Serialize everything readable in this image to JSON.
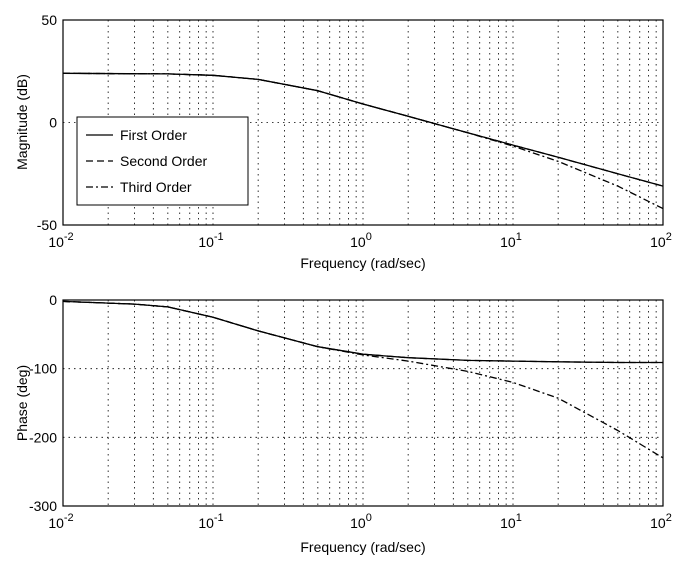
{
  "chart_data": [
    {
      "type": "line",
      "id": "magnitude",
      "xscale": "log",
      "xlim": [
        0.01,
        100
      ],
      "ylim": [
        -50,
        50
      ],
      "xlabel": "Frequency (rad/sec)",
      "ylabel": "Magnitude (dB)",
      "grid": true,
      "legend_position": "left",
      "x_ticks": [
        {
          "base": "10",
          "exp": "-2"
        },
        {
          "base": "10",
          "exp": "-1"
        },
        {
          "base": "10",
          "exp": "0"
        },
        {
          "base": "10",
          "exp": "1"
        },
        {
          "base": "10",
          "exp": "2"
        }
      ],
      "y_ticks": [
        "50",
        "0",
        "-50"
      ],
      "y_tick_values": [
        50,
        0,
        -50
      ],
      "series": [
        {
          "name": "First Order",
          "style": "solid",
          "x": [
            0.01,
            0.05,
            0.1,
            0.2,
            0.5,
            1,
            2,
            5,
            10,
            20,
            50,
            100
          ],
          "y": [
            24,
            23.7,
            23,
            21,
            15.5,
            9,
            3,
            -5,
            -11,
            -17,
            -25,
            -31
          ]
        },
        {
          "name": "Second Order",
          "style": "dashed",
          "x": [
            0.01,
            0.05,
            0.1,
            0.2,
            0.5,
            1,
            2,
            5,
            10,
            20,
            50,
            100
          ],
          "y": [
            24,
            23.7,
            23,
            21,
            15.5,
            9,
            3,
            -5,
            -11,
            -17,
            -25,
            -31
          ]
        },
        {
          "name": "Third Order",
          "style": "dashdot",
          "x": [
            0.01,
            0.05,
            0.1,
            0.2,
            0.5,
            1,
            2,
            5,
            10,
            20,
            50,
            100
          ],
          "y": [
            24,
            23.7,
            23,
            21,
            15.5,
            9,
            3,
            -5,
            -11.5,
            -19,
            -31,
            -42
          ]
        }
      ]
    },
    {
      "type": "line",
      "id": "phase",
      "xscale": "log",
      "xlim": [
        0.01,
        100
      ],
      "ylim": [
        -300,
        0
      ],
      "xlabel": "Frequency (rad/sec)",
      "ylabel": "Phase (deg)",
      "grid": true,
      "x_ticks": [
        {
          "base": "10",
          "exp": "-2"
        },
        {
          "base": "10",
          "exp": "-1"
        },
        {
          "base": "10",
          "exp": "0"
        },
        {
          "base": "10",
          "exp": "1"
        },
        {
          "base": "10",
          "exp": "2"
        }
      ],
      "y_ticks": [
        "0",
        "-100",
        "-200",
        "-300"
      ],
      "y_tick_values": [
        0,
        -100,
        -200,
        -300
      ],
      "series": [
        {
          "name": "First Order",
          "style": "solid",
          "x": [
            0.01,
            0.03,
            0.05,
            0.1,
            0.2,
            0.5,
            1,
            2,
            5,
            10,
            20,
            50,
            100
          ],
          "y": [
            -2,
            -6,
            -10,
            -25,
            -45,
            -68,
            -79,
            -84,
            -88,
            -89,
            -90,
            -91,
            -91
          ]
        },
        {
          "name": "Second Order",
          "style": "dashed",
          "x": [
            0.01,
            0.03,
            0.05,
            0.1,
            0.2,
            0.5,
            1,
            2,
            5,
            10,
            20,
            50,
            100
          ],
          "y": [
            -2,
            -6,
            -10,
            -25,
            -45,
            -68,
            -79,
            -84,
            -88,
            -89,
            -90,
            -91,
            -91
          ]
        },
        {
          "name": "Third Order",
          "style": "dashdot",
          "x": [
            0.01,
            0.03,
            0.05,
            0.1,
            0.2,
            0.5,
            1,
            2,
            5,
            10,
            20,
            50,
            100
          ],
          "y": [
            -2,
            -6,
            -10,
            -25,
            -45,
            -68,
            -80,
            -89,
            -104,
            -120,
            -143,
            -190,
            -230
          ]
        }
      ]
    }
  ]
}
